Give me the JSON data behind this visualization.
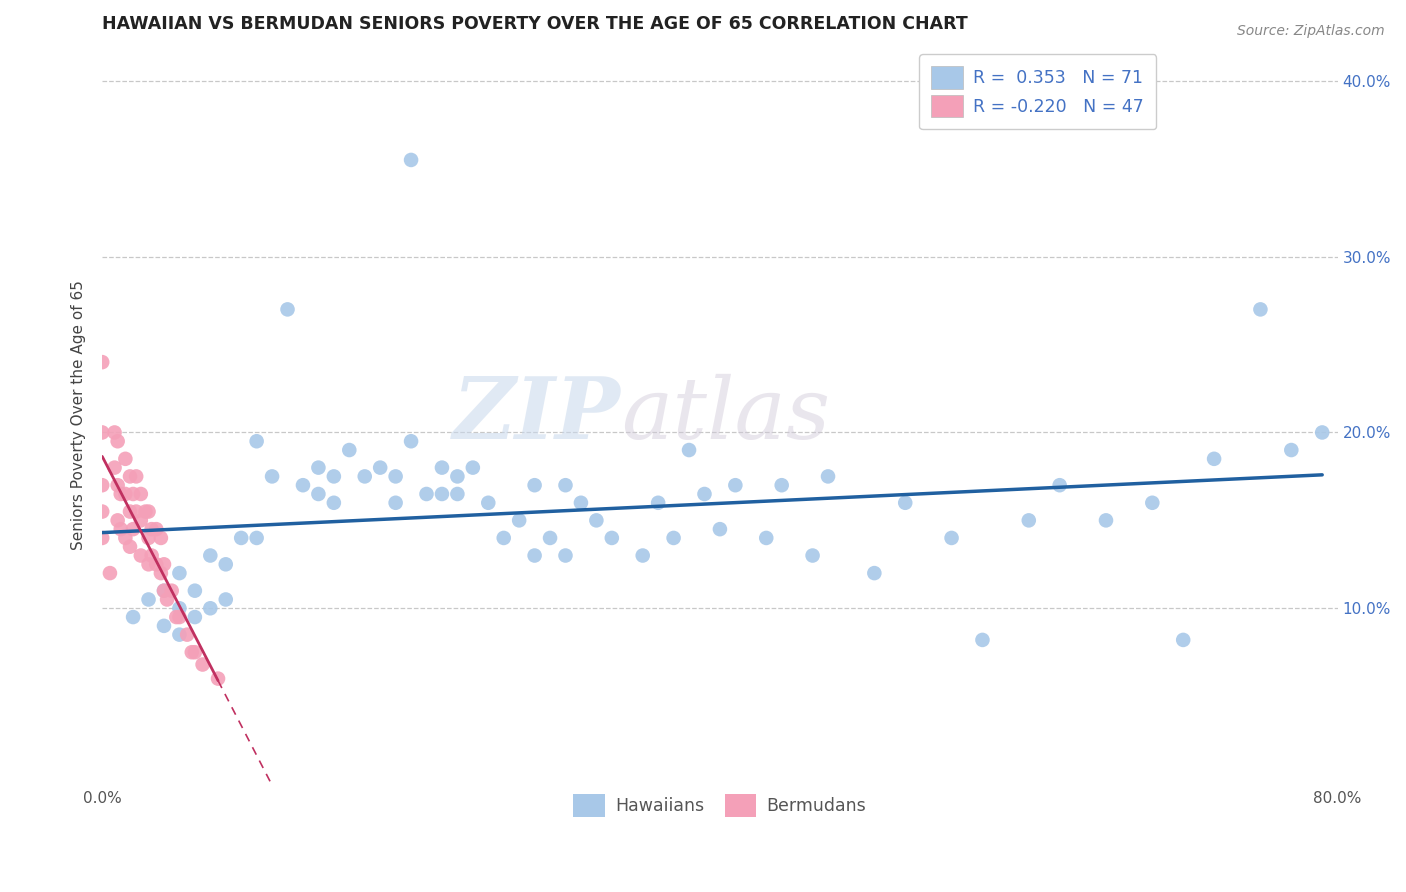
{
  "title": "HAWAIIAN VS BERMUDAN SENIORS POVERTY OVER THE AGE OF 65 CORRELATION CHART",
  "source": "Source: ZipAtlas.com",
  "ylabel": "Seniors Poverty Over the Age of 65",
  "xlim": [
    0.0,
    0.8
  ],
  "ylim": [
    0.0,
    0.42
  ],
  "xtick_positions": [
    0.0,
    0.1,
    0.2,
    0.3,
    0.4,
    0.5,
    0.6,
    0.7,
    0.8
  ],
  "xticklabels": [
    "0.0%",
    "",
    "",
    "",
    "",
    "",
    "",
    "",
    "80.0%"
  ],
  "ytick_positions": [
    0.0,
    0.1,
    0.2,
    0.3,
    0.4
  ],
  "ytick_right_labels": [
    "",
    "10.0%",
    "20.0%",
    "30.0%",
    "40.0%"
  ],
  "hawaiian_R": 0.353,
  "hawaiian_N": 71,
  "bermudan_R": -0.22,
  "bermudan_N": 47,
  "hawaiian_color": "#a8c8e8",
  "bermudan_color": "#f4a0b8",
  "hawaiian_line_color": "#2060a0",
  "bermudan_line_color": "#c03060",
  "watermark_zip": "ZIP",
  "watermark_atlas": "atlas",
  "hawaiian_x": [
    0.02,
    0.03,
    0.04,
    0.04,
    0.05,
    0.05,
    0.05,
    0.06,
    0.06,
    0.07,
    0.07,
    0.08,
    0.08,
    0.09,
    0.1,
    0.1,
    0.11,
    0.12,
    0.13,
    0.14,
    0.14,
    0.15,
    0.15,
    0.16,
    0.17,
    0.18,
    0.19,
    0.19,
    0.2,
    0.2,
    0.21,
    0.22,
    0.22,
    0.23,
    0.23,
    0.24,
    0.25,
    0.26,
    0.27,
    0.28,
    0.28,
    0.29,
    0.3,
    0.3,
    0.31,
    0.32,
    0.33,
    0.35,
    0.36,
    0.37,
    0.38,
    0.39,
    0.4,
    0.41,
    0.43,
    0.44,
    0.46,
    0.47,
    0.5,
    0.52,
    0.55,
    0.57,
    0.6,
    0.62,
    0.65,
    0.68,
    0.7,
    0.72,
    0.75,
    0.77,
    0.79
  ],
  "hawaiian_y": [
    0.095,
    0.105,
    0.11,
    0.09,
    0.12,
    0.1,
    0.085,
    0.11,
    0.095,
    0.13,
    0.1,
    0.125,
    0.105,
    0.14,
    0.195,
    0.14,
    0.175,
    0.27,
    0.17,
    0.18,
    0.165,
    0.175,
    0.16,
    0.19,
    0.175,
    0.18,
    0.175,
    0.16,
    0.195,
    0.355,
    0.165,
    0.165,
    0.18,
    0.175,
    0.165,
    0.18,
    0.16,
    0.14,
    0.15,
    0.13,
    0.17,
    0.14,
    0.17,
    0.13,
    0.16,
    0.15,
    0.14,
    0.13,
    0.16,
    0.14,
    0.19,
    0.165,
    0.145,
    0.17,
    0.14,
    0.17,
    0.13,
    0.175,
    0.12,
    0.16,
    0.14,
    0.082,
    0.15,
    0.17,
    0.15,
    0.16,
    0.082,
    0.185,
    0.27,
    0.19,
    0.2
  ],
  "bermudan_x": [
    0.0,
    0.0,
    0.0,
    0.0,
    0.0,
    0.005,
    0.008,
    0.008,
    0.01,
    0.01,
    0.01,
    0.012,
    0.012,
    0.015,
    0.015,
    0.015,
    0.018,
    0.018,
    0.018,
    0.02,
    0.02,
    0.022,
    0.022,
    0.025,
    0.025,
    0.025,
    0.028,
    0.03,
    0.03,
    0.03,
    0.032,
    0.032,
    0.035,
    0.035,
    0.038,
    0.038,
    0.04,
    0.04,
    0.042,
    0.045,
    0.048,
    0.05,
    0.055,
    0.058,
    0.06,
    0.065,
    0.075
  ],
  "bermudan_y": [
    0.24,
    0.2,
    0.17,
    0.155,
    0.14,
    0.12,
    0.2,
    0.18,
    0.195,
    0.17,
    0.15,
    0.165,
    0.145,
    0.185,
    0.165,
    0.14,
    0.175,
    0.155,
    0.135,
    0.165,
    0.145,
    0.175,
    0.155,
    0.165,
    0.15,
    0.13,
    0.155,
    0.155,
    0.14,
    0.125,
    0.145,
    0.13,
    0.145,
    0.125,
    0.14,
    0.12,
    0.125,
    0.11,
    0.105,
    0.11,
    0.095,
    0.095,
    0.085,
    0.075,
    0.075,
    0.068,
    0.06
  ]
}
